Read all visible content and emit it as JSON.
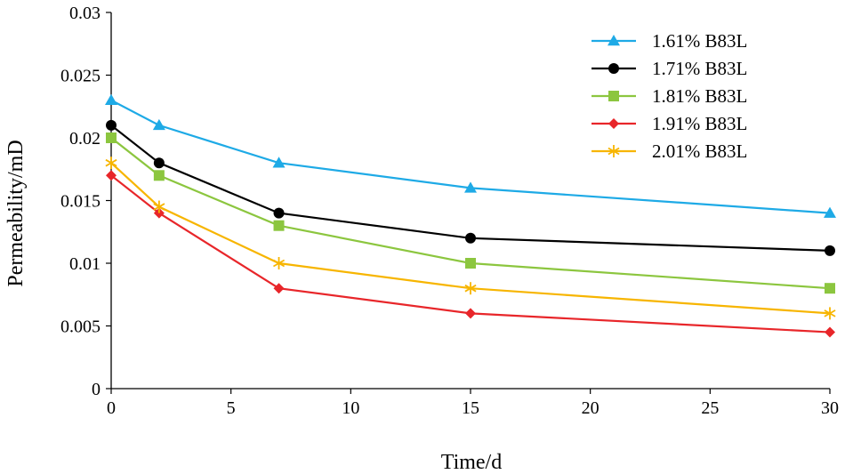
{
  "chart_data": {
    "type": "line",
    "title": "",
    "xlabel": "Time/d",
    "ylabel": "Permeability/mD",
    "xlim": [
      0,
      30
    ],
    "ylim": [
      0,
      0.03
    ],
    "x_ticks": [
      "0",
      "5",
      "10",
      "15",
      "20",
      "25",
      "30"
    ],
    "y_ticks": [
      "0",
      "0.005",
      "0.01",
      "0.015",
      "0.02",
      "0.025",
      "0.03"
    ],
    "grid": false,
    "legend_position": "top-right",
    "x": [
      0,
      2,
      7,
      15,
      30
    ],
    "series": [
      {
        "name": "1.61% B83L",
        "color": "#1EAAE6",
        "marker": "triangle",
        "values": [
          0.023,
          0.021,
          0.018,
          0.016,
          0.014
        ]
      },
      {
        "name": "1.71% B83L",
        "color": "#000000",
        "marker": "circle",
        "values": [
          0.021,
          0.018,
          0.014,
          0.012,
          0.011
        ]
      },
      {
        "name": "1.81% B83L",
        "color": "#8CC63F",
        "marker": "square",
        "values": [
          0.02,
          0.017,
          0.013,
          0.01,
          0.008
        ]
      },
      {
        "name": "1.91% B83L",
        "color": "#E8262A",
        "marker": "diamond",
        "values": [
          0.017,
          0.014,
          0.008,
          0.006,
          0.0045
        ]
      },
      {
        "name": "2.01% B83L",
        "color": "#F7B500",
        "marker": "asterisk",
        "values": [
          0.018,
          0.0145,
          0.01,
          0.008,
          0.006
        ]
      }
    ]
  }
}
